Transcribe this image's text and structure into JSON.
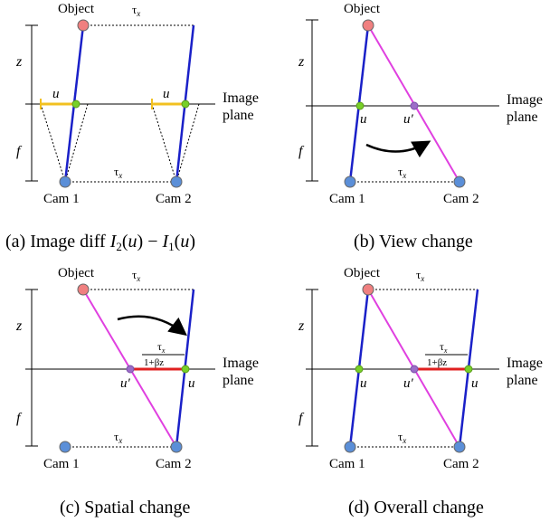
{
  "labels": {
    "object": "Object",
    "cam1": "Cam 1",
    "cam2": "Cam 2",
    "image_plane_1": "Image",
    "image_plane_2": "plane",
    "tau_x": "τx",
    "tau_main": "τ",
    "tau_sub": "x",
    "z": "z",
    "f": "f",
    "u": "u",
    "u_prime": "u′",
    "frac_num": "τx",
    "frac_den": "1+βz"
  },
  "captions": {
    "a": "(a) Image diff I₂(u) − I₁(u)",
    "b": "(b) View change",
    "c": "(c) Spatial change",
    "d": "(d) Overall change"
  },
  "colors": {
    "blue_line": "#1a20c8",
    "magenta_line": "#e040e0",
    "red_line": "#e02020",
    "yellow_line": "#f2c020",
    "green_dot": "#78d028",
    "purple_dot": "#9c6cc8",
    "object_fill": "#f08080",
    "cam_fill": "#5b8fd8"
  }
}
